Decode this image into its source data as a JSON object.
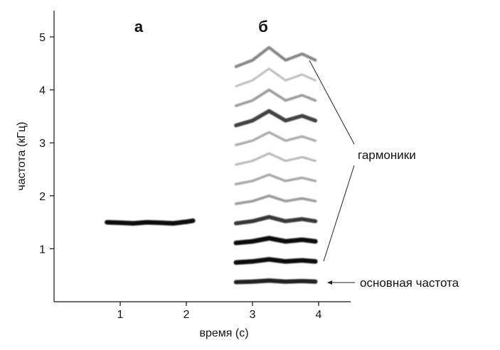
{
  "chart_data": {
    "type": "scatter",
    "xlabel": "время (с)",
    "ylabel": "частота (кГц)",
    "xlim": [
      0,
      4.5
    ],
    "ylim": [
      0,
      5.4
    ],
    "xticks": [
      "1",
      "2",
      "3",
      "4"
    ],
    "yticks": [
      "1",
      "2",
      "3",
      "4",
      "5"
    ],
    "grid": false,
    "panels": [
      {
        "label": "а",
        "tracks": [
          {
            "harmonic": 1,
            "x": [
              0.8,
              1.0,
              1.2,
              1.4,
              1.6,
              1.8,
              2.0,
              2.1
            ],
            "y": [
              1.5,
              1.49,
              1.48,
              1.5,
              1.49,
              1.48,
              1.51,
              1.53
            ],
            "intensity": 1.0
          }
        ]
      },
      {
        "label": "б",
        "fundamental_khz": 0.37,
        "harmonic_count": 12,
        "tracks": [
          {
            "harmonic": 1,
            "x": [
              2.75,
              3.0,
              3.25,
              3.5,
              3.75,
              3.95
            ],
            "y": [
              0.37,
              0.38,
              0.4,
              0.38,
              0.39,
              0.38
            ],
            "intensity": 0.9
          },
          {
            "harmonic": 2,
            "x": [
              2.75,
              3.0,
              3.25,
              3.5,
              3.75,
              3.95
            ],
            "y": [
              0.74,
              0.76,
              0.8,
              0.76,
              0.78,
              0.76
            ],
            "intensity": 1.0
          },
          {
            "harmonic": 3,
            "x": [
              2.75,
              3.0,
              3.25,
              3.5,
              3.75,
              3.95
            ],
            "y": [
              1.11,
              1.14,
              1.2,
              1.14,
              1.17,
              1.14
            ],
            "intensity": 1.0
          },
          {
            "harmonic": 4,
            "x": [
              2.75,
              3.0,
              3.25,
              3.5,
              3.75,
              3.95
            ],
            "y": [
              1.48,
              1.52,
              1.6,
              1.52,
              1.56,
              1.52
            ],
            "intensity": 0.8
          },
          {
            "harmonic": 5,
            "x": [
              2.75,
              3.0,
              3.25,
              3.5,
              3.75,
              3.95
            ],
            "y": [
              1.85,
              1.9,
              2.0,
              1.9,
              1.95,
              1.9
            ],
            "intensity": 0.35
          },
          {
            "harmonic": 6,
            "x": [
              2.75,
              3.0,
              3.25,
              3.5,
              3.75,
              3.95
            ],
            "y": [
              2.22,
              2.28,
              2.4,
              2.28,
              2.34,
              2.28
            ],
            "intensity": 0.3
          },
          {
            "harmonic": 7,
            "x": [
              2.75,
              3.0,
              3.25,
              3.5,
              3.75,
              3.95
            ],
            "y": [
              2.59,
              2.66,
              2.8,
              2.66,
              2.73,
              2.66
            ],
            "intensity": 0.22
          },
          {
            "harmonic": 8,
            "x": [
              2.75,
              3.0,
              3.25,
              3.5,
              3.75,
              3.95
            ],
            "y": [
              2.96,
              3.04,
              3.2,
              3.04,
              3.12,
              3.04
            ],
            "intensity": 0.28
          },
          {
            "harmonic": 9,
            "x": [
              2.75,
              3.0,
              3.25,
              3.5,
              3.75,
              3.95
            ],
            "y": [
              3.33,
              3.42,
              3.6,
              3.42,
              3.51,
              3.42
            ],
            "intensity": 0.75
          },
          {
            "harmonic": 10,
            "x": [
              2.75,
              3.0,
              3.25,
              3.5,
              3.75,
              3.95
            ],
            "y": [
              3.7,
              3.8,
              4.0,
              3.8,
              3.9,
              3.8
            ],
            "intensity": 0.35
          },
          {
            "harmonic": 11,
            "x": [
              2.75,
              3.0,
              3.25,
              3.5,
              3.75,
              3.95
            ],
            "y": [
              4.07,
              4.18,
              4.4,
              4.18,
              4.29,
              4.18
            ],
            "intensity": 0.2
          },
          {
            "harmonic": 12,
            "x": [
              2.75,
              3.0,
              3.25,
              3.5,
              3.75,
              3.95
            ],
            "y": [
              4.44,
              4.56,
              4.8,
              4.56,
              4.68,
              4.56
            ],
            "intensity": 0.45
          }
        ]
      }
    ],
    "annotations": [
      {
        "text": "гармоники"
      },
      {
        "text": "основная частота"
      }
    ]
  }
}
